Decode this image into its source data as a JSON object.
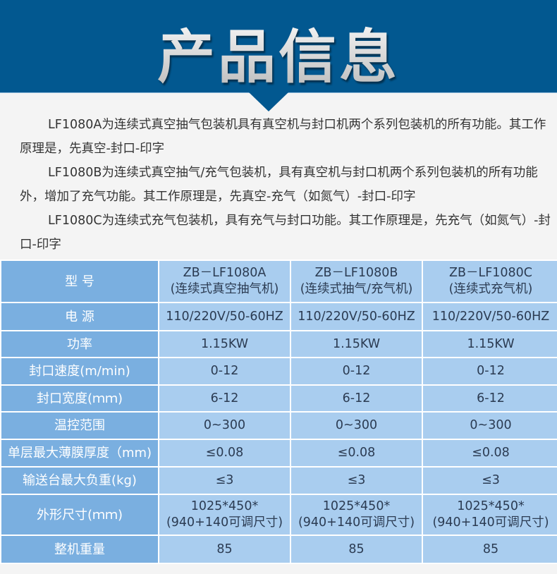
{
  "header": {
    "title": "产品信息"
  },
  "intro": [
    "LF1080A为连续式真空抽气包装机具有真空机与封口机两个系列包装机的所有功能。其工作原理是，先真空-封口-印字",
    "LF1080B为连续式真空抽气/充气包装机，具有真空机与封口机两个系列包装机的所有功能外，增加了充气功能。其工作原理是，先真空-充气（如氮气）-封口-印字",
    "LF1080C为连续式充气包装机，具有充气与封口功能。其工作原理是，先充气（如氮气）-封口-印字"
  ],
  "table": {
    "rows": [
      {
        "label": "型 号",
        "cells": [
          [
            "ZB－LF1080A",
            "(连续式真空抽气机)"
          ],
          [
            "ZB－LF1080B",
            "(连续式抽气/充气机)"
          ],
          [
            "ZB－LF1080C",
            "(连续式充气机)"
          ]
        ]
      },
      {
        "label": "电 源",
        "cells": [
          [
            "110/220V/50-60HZ"
          ],
          [
            "110/220V/50-60HZ"
          ],
          [
            "110/220V/50-60HZ"
          ]
        ]
      },
      {
        "label": "功率",
        "cells": [
          [
            "1.15KW"
          ],
          [
            "1.15KW"
          ],
          [
            "1.15KW"
          ]
        ]
      },
      {
        "label": "封口速度(m/min)",
        "cells": [
          [
            "0-12"
          ],
          [
            "0-12"
          ],
          [
            "0-12"
          ]
        ]
      },
      {
        "label": "封口宽度(ｍｍ)",
        "cells": [
          [
            "6-12"
          ],
          [
            "6-12"
          ],
          [
            "6-12"
          ]
        ]
      },
      {
        "label": "温控范围",
        "cells": [
          [
            "0~300"
          ],
          [
            "0~300"
          ],
          [
            "0~300"
          ]
        ]
      },
      {
        "label": "单层最大薄膜厚度（mm)",
        "cells": [
          [
            "≤0.08"
          ],
          [
            "≤0.08"
          ],
          [
            "≤0.08"
          ]
        ]
      },
      {
        "label": "输送台最大负重(kg)",
        "cells": [
          [
            "≤3"
          ],
          [
            "≤3"
          ],
          [
            "≤3"
          ]
        ]
      },
      {
        "label": "外形尺寸(ｍｍ)",
        "cells": [
          [
            "1025*450*",
            "(940+140可调尺寸)"
          ],
          [
            "1025*450*",
            "(940+140可调尺寸)"
          ],
          [
            "1025*450*",
            "(940+140可调尺寸)"
          ]
        ]
      },
      {
        "label": "整机重量",
        "cells": [
          [
            "85"
          ],
          [
            "85"
          ],
          [
            "85"
          ]
        ]
      }
    ]
  },
  "colors": {
    "banner": "#025890",
    "label_cell": "#7aafe0",
    "data_cell": "#a9cdef"
  }
}
